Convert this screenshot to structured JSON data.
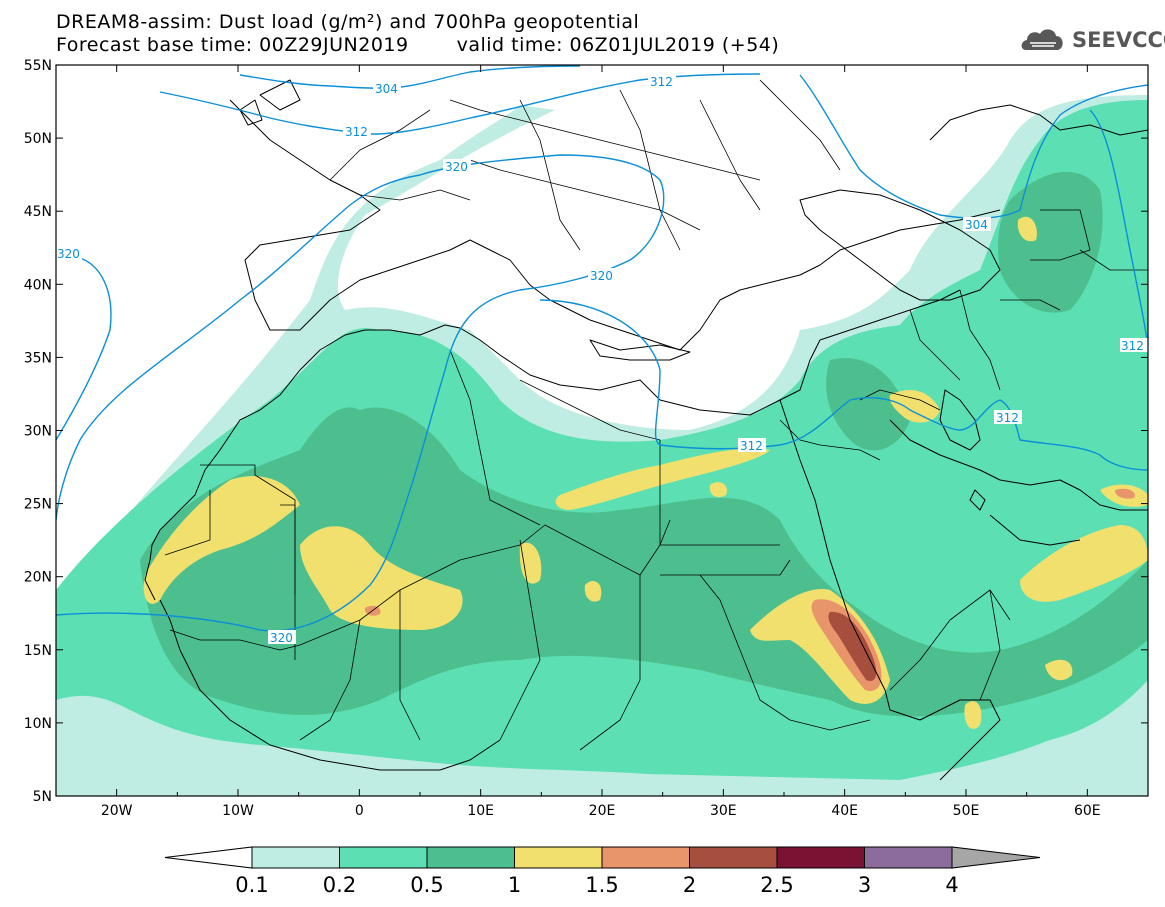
{
  "title": {
    "line1": "DREAM8-assim: Dust load (g/m²) and 700hPa geopotential",
    "base_time": "Forecast base time: 00Z29JUN2019",
    "valid_time": "valid time: 06Z01JUL2019 (+54)"
  },
  "logo": {
    "text": "SEEVCCC",
    "icon": "cloud-logo-icon",
    "color": "#585858"
  },
  "map": {
    "lon_range": [
      -25,
      65
    ],
    "lat_range": [
      5,
      55
    ],
    "x_ticks": [
      "20W",
      "10W",
      "0",
      "10E",
      "20E",
      "30E",
      "40E",
      "50E",
      "60E"
    ],
    "y_ticks": [
      "55N",
      "50N",
      "45N",
      "40N",
      "35N",
      "30N",
      "25N",
      "20N",
      "15N",
      "10N",
      "5N"
    ],
    "contour_color": "#0b8fd6",
    "contour_labels": [
      "304",
      "312",
      "312",
      "320",
      "320",
      "320",
      "320",
      "312",
      "304",
      "312",
      "312"
    ]
  },
  "colorbar": {
    "levels": [
      "0.1",
      "0.2",
      "0.5",
      "1",
      "1.5",
      "2",
      "2.5",
      "3",
      "4"
    ],
    "colors": [
      "#ffffff",
      "#c0ede3",
      "#5ce0b3",
      "#4dbf8e",
      "#f2e06e",
      "#e8956b",
      "#a64f3f",
      "#7a1234",
      "#8c6c9c",
      "#a6a6a6"
    ]
  }
}
